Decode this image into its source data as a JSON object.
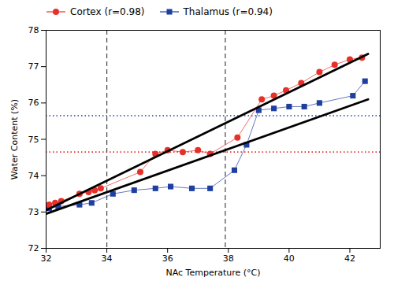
{
  "chart_data": {
    "type": "line",
    "xlabel": "NAc Temperature (°C)",
    "ylabel": "Water Content (%)",
    "xlim": [
      32,
      43
    ],
    "xticks": [
      32,
      34,
      36,
      38,
      40,
      42
    ],
    "ylim": [
      72,
      78
    ],
    "yticks": [
      72,
      73,
      74,
      75,
      76,
      77,
      78
    ],
    "legend": "upper left",
    "series": [
      {
        "name": "Cortex (r=0.98)",
        "color": "#e8302a",
        "marker": "circle",
        "x": [
          32.1,
          32.3,
          32.5,
          33.1,
          33.4,
          33.6,
          33.8,
          35.1,
          35.6,
          36.0,
          36.5,
          37.0,
          37.4,
          38.3,
          39.1,
          39.5,
          39.9,
          40.4,
          41.0,
          41.5,
          42.0,
          42.4
        ],
        "values": [
          73.2,
          73.25,
          73.3,
          73.5,
          73.55,
          73.6,
          73.65,
          74.1,
          74.6,
          74.7,
          74.65,
          74.7,
          74.6,
          75.05,
          76.1,
          76.2,
          76.35,
          76.55,
          76.85,
          77.05,
          77.2,
          77.25
        ]
      },
      {
        "name": "Thalamus (r=0.94)",
        "color": "#1f3fa0",
        "marker": "square",
        "x": [
          32.1,
          32.4,
          33.1,
          33.5,
          34.2,
          34.9,
          35.6,
          36.1,
          36.8,
          37.4,
          38.2,
          38.6,
          39.0,
          39.5,
          40.0,
          40.5,
          41.0,
          42.1,
          42.5
        ],
        "values": [
          73.1,
          73.15,
          73.2,
          73.25,
          73.5,
          73.6,
          73.65,
          73.7,
          73.65,
          73.65,
          74.15,
          74.85,
          75.8,
          75.85,
          75.9,
          75.9,
          76.0,
          76.2,
          76.6
        ]
      }
    ],
    "regression_lines": [
      {
        "x": [
          32.0,
          42.6
        ],
        "values": [
          73.05,
          77.35
        ],
        "color": "#000000"
      },
      {
        "x": [
          32.0,
          42.6
        ],
        "values": [
          72.95,
          76.1
        ],
        "color": "#000000"
      }
    ],
    "hlines": [
      {
        "value": 74.65,
        "color": "#e8302a",
        "line_style": "dotted"
      },
      {
        "value": 75.65,
        "color": "#1f3fa0",
        "line_style": "dotted"
      }
    ],
    "vlines": [
      {
        "value": 34.0,
        "color": "#444444",
        "line_style": "dashed"
      },
      {
        "value": 37.9,
        "color": "#444444",
        "line_style": "dashed"
      }
    ]
  }
}
